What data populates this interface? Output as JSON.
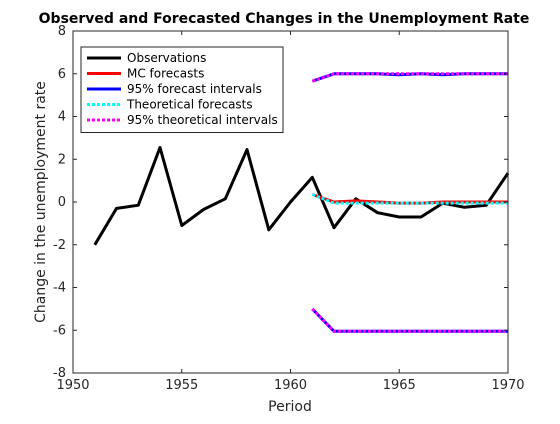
{
  "chart_data": {
    "type": "line",
    "title": "Observed and Forecasted Changes in the Unemployment Rate",
    "xlabel": "Period",
    "ylabel": "Change in the unemployment rate",
    "xlim": [
      1950,
      1970
    ],
    "ylim": [
      -8,
      8
    ],
    "xticks": [
      1950,
      1955,
      1960,
      1965,
      1970
    ],
    "yticks": [
      -8,
      -6,
      -4,
      -2,
      0,
      2,
      4,
      6,
      8
    ],
    "grid": false,
    "legend_position": "top-left",
    "series": [
      {
        "name": "Observations",
        "color": "#000000",
        "style": "solid",
        "x": [
          1951,
          1952,
          1953,
          1954,
          1955,
          1956,
          1957,
          1958,
          1959,
          1960,
          1961,
          1962,
          1963,
          1964,
          1965,
          1966,
          1967,
          1968,
          1969,
          1970
        ],
        "y": [
          -2.0,
          -0.3,
          -0.15,
          2.55,
          -1.1,
          -0.35,
          0.15,
          2.45,
          -1.3,
          0.0,
          1.15,
          -1.2,
          0.15,
          -0.5,
          -0.7,
          -0.7,
          -0.05,
          -0.25,
          -0.15,
          1.35
        ]
      },
      {
        "name": "MC forecasts",
        "color": "#ff0000",
        "style": "solid",
        "x": [
          1961,
          1962,
          1963,
          1964,
          1965,
          1966,
          1967,
          1968,
          1969,
          1970
        ],
        "y": [
          0.35,
          0.0,
          0.05,
          0.0,
          -0.05,
          -0.05,
          0.0,
          0.0,
          0.0,
          0.0
        ]
      },
      {
        "name": "95% forecast intervals",
        "color": "#0000ff",
        "style": "solid",
        "band": "upper",
        "x": [
          1961,
          1962,
          1963,
          1964,
          1965,
          1966,
          1967,
          1968,
          1969,
          1970
        ],
        "y": [
          5.65,
          6.0,
          6.0,
          6.0,
          5.95,
          6.0,
          5.95,
          6.0,
          6.0,
          6.0
        ]
      },
      {
        "name": "",
        "color": "#0000ff",
        "style": "solid",
        "band": "lower",
        "x": [
          1961,
          1962,
          1963,
          1964,
          1965,
          1966,
          1967,
          1968,
          1969,
          1970
        ],
        "y": [
          -5.0,
          -6.05,
          -6.05,
          -6.05,
          -6.05,
          -6.05,
          -6.05,
          -6.05,
          -6.05,
          -6.05
        ]
      },
      {
        "name": "Theoretical forecasts",
        "color": "#00ffff",
        "style": "dotted",
        "x": [
          1961,
          1962,
          1963,
          1964,
          1965,
          1966,
          1967,
          1968,
          1969,
          1970
        ],
        "y": [
          0.35,
          -0.05,
          -0.05,
          -0.05,
          -0.05,
          -0.05,
          -0.05,
          -0.05,
          -0.05,
          -0.05
        ]
      },
      {
        "name": "95% theoretical intervals",
        "color": "#ff00ff",
        "style": "dotted",
        "band": "upper",
        "x": [
          1961,
          1962,
          1963,
          1964,
          1965,
          1966,
          1967,
          1968,
          1969,
          1970
        ],
        "y": [
          5.65,
          6.0,
          6.0,
          6.0,
          6.0,
          6.0,
          6.0,
          6.0,
          6.0,
          6.0
        ]
      },
      {
        "name": "",
        "color": "#ff00ff",
        "style": "dotted",
        "band": "lower",
        "x": [
          1961,
          1962,
          1963,
          1964,
          1965,
          1966,
          1967,
          1968,
          1969,
          1970
        ],
        "y": [
          -5.0,
          -6.05,
          -6.05,
          -6.05,
          -6.05,
          -6.05,
          -6.05,
          -6.05,
          -6.05,
          -6.05
        ]
      }
    ]
  }
}
